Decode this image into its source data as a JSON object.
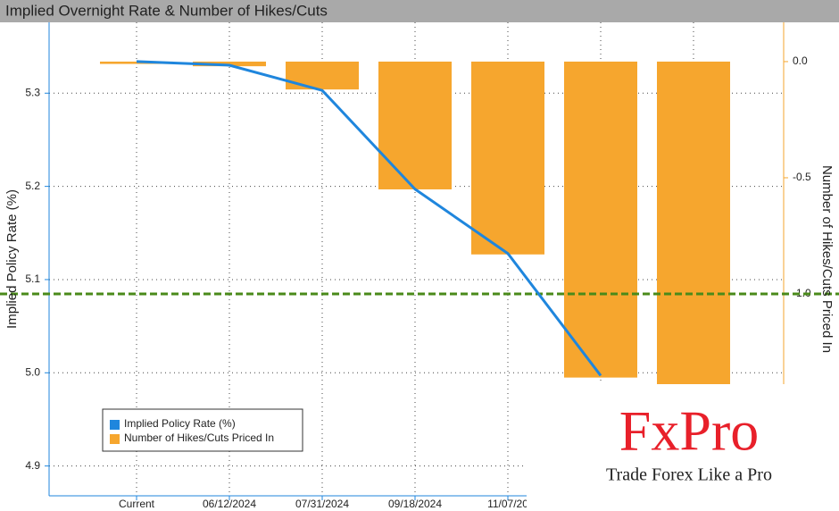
{
  "chart_data": {
    "type": "bar_line",
    "title": "Implied Overnight Rate & Number of Hikes/Cuts",
    "categories": [
      "Current",
      "06/12/2024",
      "07/31/2024",
      "09/18/2024",
      "11/07/20",
      null,
      null
    ],
    "series": [
      {
        "name": "Implied Policy Rate (%)",
        "type": "line",
        "axis": "y",
        "color": "#1f86dd",
        "values": [
          5.334,
          5.33,
          5.303,
          5.197,
          5.128,
          4.997,
          null
        ]
      },
      {
        "name": "Number of Hikes/Cuts Priced In",
        "type": "bar",
        "axis": "y2",
        "color": "#f6a62e",
        "values": [
          -0.01,
          -0.02,
          -0.12,
          -0.55,
          -0.83,
          -1.36,
          -1.39
        ]
      }
    ],
    "y_label": "Implied Policy Rate (%)",
    "y2_label": "Number of Hikes/Cuts Priced In",
    "ylim": [
      4.868,
      5.376
    ],
    "yticks": [
      4.9,
      {
        "value": 5,
        "label": "5.0"
      },
      5.1,
      5.2,
      5.3
    ],
    "y2lim": [
      -1.869,
      0.169
    ],
    "y2ticks": [
      {
        "value": 0,
        "label": "0.0"
      },
      {
        "value": -0.5,
        "label": "-0.5"
      },
      {
        "value": -1,
        "label": "-1.0"
      }
    ],
    "reference_line": {
      "value": -1,
      "axis": "y2",
      "color": "#4a8a1a"
    },
    "grid": true,
    "legend": "lower-left",
    "watermark": {
      "brand": "FxPro",
      "tagline": "Trade Forex Like a Pro"
    }
  }
}
